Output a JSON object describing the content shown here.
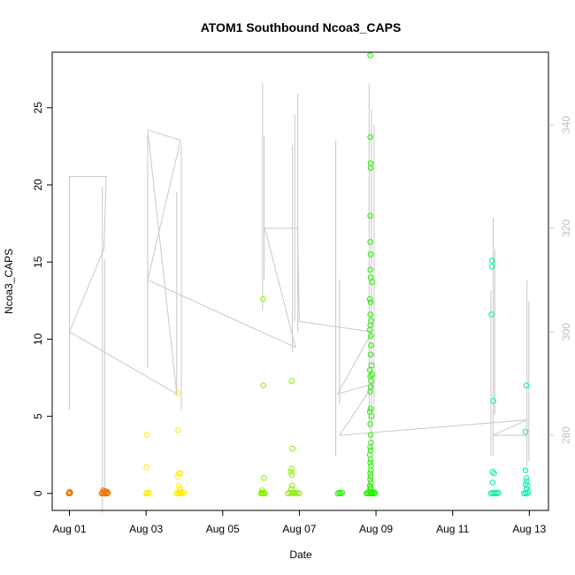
{
  "chart_data": {
    "type": "scatter",
    "title": "ATOM1 Southbound Ncoa3_CAPS",
    "xlabel": "Date",
    "ylabel": "Ncoa3_CAPS",
    "x_ticks": [
      "Aug 01",
      "Aug 03",
      "Aug 05",
      "Aug 07",
      "Aug 09",
      "Aug 11",
      "Aug 13"
    ],
    "x_tick_days": [
      1,
      3,
      5,
      7,
      9,
      11,
      13
    ],
    "xlim_days": [
      0.55,
      13.5
    ],
    "ylim": [
      -1.1,
      28.6
    ],
    "y_ticks": [
      0,
      5,
      10,
      15,
      20,
      25
    ],
    "y2lim": [
      265.5,
      354
    ],
    "y2_ticks": [
      280,
      300,
      320,
      340
    ],
    "colors": {
      "secondary_axis": "#bebebe",
      "trace_line": "#c8c8c8"
    },
    "series": [
      {
        "color": "#ee7700",
        "x": [
          0.98,
          1.0,
          1.0,
          1.01,
          1.02,
          1.84,
          1.86,
          1.9,
          1.92,
          1.95,
          1.97,
          2.0,
          1.88,
          1.93,
          1.99
        ],
        "y": [
          0,
          0.1,
          0.05,
          0,
          0.05,
          0,
          0.05,
          0,
          0.1,
          0,
          0.05,
          0,
          0.2,
          0.15,
          0.1
        ]
      },
      {
        "color": "#ffee00",
        "x": [
          3.0,
          3.02,
          3.05,
          3.08,
          3.02,
          3.01,
          3.79,
          3.82,
          3.85,
          3.88,
          3.9,
          3.93,
          3.96,
          3.99,
          3.82,
          3.84,
          3.86,
          3.9,
          3.85,
          3.88,
          3.82
        ],
        "y": [
          0,
          0.05,
          0,
          0.05,
          3.8,
          1.7,
          0,
          0.05,
          0,
          0.1,
          0,
          0.05,
          0,
          0.1,
          6.5,
          4.1,
          1.3,
          1.3,
          0.5,
          0.3,
          1.1
        ]
      },
      {
        "color": "#88ee00",
        "x": [
          6.0,
          6.02,
          6.05,
          6.08,
          6.1,
          6.05,
          6.06,
          6.08,
          6.03,
          6.7,
          6.75,
          6.8,
          6.85,
          6.9,
          6.95,
          7.0,
          6.8,
          6.82,
          6.8,
          6.78,
          6.8,
          6.81,
          6.79
        ],
        "y": [
          0,
          0.05,
          0,
          0.05,
          0,
          12.6,
          7.0,
          1.0,
          0.2,
          0,
          0.05,
          0,
          0.05,
          0,
          0.05,
          0,
          7.3,
          2.9,
          1.6,
          1.4,
          1.2,
          0.5,
          0.3
        ]
      },
      {
        "color": "#22ee00",
        "x": [
          8.0,
          8.04,
          8.08,
          8.12,
          8.75,
          8.78,
          8.8,
          8.82,
          8.85,
          8.88,
          8.9,
          8.92,
          8.95,
          8.98,
          8.85,
          8.85,
          8.86,
          8.86,
          8.85,
          8.85,
          8.86,
          8.85,
          8.86,
          8.84,
          8.86,
          8.85,
          8.87,
          8.85,
          8.84,
          8.86,
          8.87,
          8.9,
          8.86,
          8.88,
          8.84,
          8.85,
          8.87,
          8.86,
          8.85,
          8.86,
          8.84,
          8.88,
          8.85,
          8.86,
          8.87,
          8.85,
          8.86,
          8.84,
          8.86,
          8.85,
          8.87,
          8.86,
          8.85,
          8.86,
          8.85,
          8.87,
          8.84,
          8.86,
          8.85,
          8.9
        ],
        "y": [
          0,
          0.05,
          0,
          0.05,
          0,
          0.05,
          0,
          0.1,
          0,
          0.05,
          0,
          0.1,
          0,
          0.05,
          28.4,
          23.1,
          21.4,
          21.1,
          18.0,
          16.3,
          15.5,
          14.5,
          14.0,
          12.6,
          12.4,
          11.6,
          11.2,
          10.9,
          10.6,
          10.2,
          9.6,
          13.7,
          9.0,
          8.3,
          8.0,
          7.6,
          7.3,
          6.9,
          6.6,
          5.5,
          5.3,
          5.0,
          4.5,
          3.8,
          3.3,
          3.0,
          2.8,
          2.5,
          2.2,
          2.0,
          1.8,
          1.5,
          1.3,
          1.1,
          0.9,
          0.7,
          0.5,
          0.4,
          0.3,
          7.7
        ]
      },
      {
        "color": "#00eeaa",
        "x": [
          12.0,
          12.04,
          12.08,
          12.12,
          12.16,
          12.2,
          12.86,
          12.9,
          12.94,
          12.98,
          12.03,
          12.03,
          12.01,
          12.06,
          12.08,
          12.04,
          12.04,
          12.9,
          12.92,
          12.93,
          12.9,
          12.92,
          12.9,
          12.95,
          12.93
        ],
        "y": [
          0,
          0.05,
          0,
          0.05,
          0,
          0.05,
          0,
          0.05,
          0,
          0.1,
          15.1,
          14.7,
          11.6,
          6.0,
          1.3,
          1.4,
          0.7,
          1.5,
          1.0,
          0.8,
          0.6,
          7.0,
          4.0,
          0.5,
          0.3
        ]
      }
    ]
  }
}
